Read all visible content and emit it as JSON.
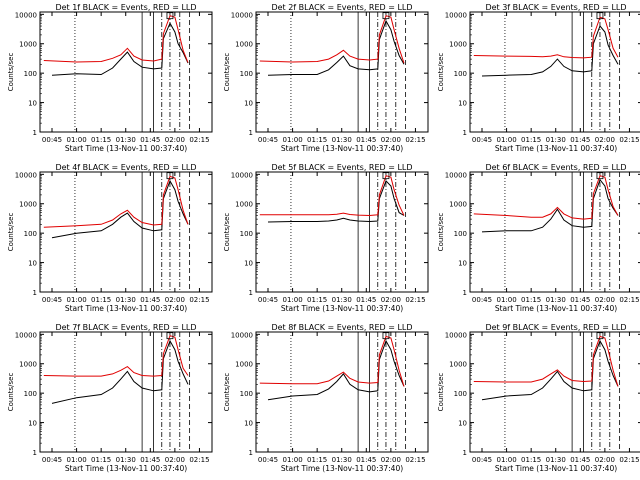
{
  "colors": {
    "events": "#000000",
    "lld": "#e00000",
    "axis": "#000000"
  },
  "chart_data": [
    {
      "type": "line",
      "title": "Det 1f BLACK = Events, RED = LLD",
      "xlabel": "Start Time (13-Nov-11 00:37:40)",
      "ylabel": "Counts/sec",
      "x_tick_labels": [
        "00:45",
        "01:00",
        "01:15",
        "01:30",
        "01:45",
        "02:00",
        "02:15"
      ],
      "y_tick_labels": [
        "1",
        "10",
        "100",
        "1000",
        "10000"
      ],
      "ylim": [
        1,
        12000
      ],
      "y_scale": "log",
      "series": [
        {
          "name": "Events",
          "x": [
            "00:45",
            "01:00",
            "01:15",
            "01:22",
            "01:27",
            "01:31",
            "01:35",
            "01:40",
            "01:47",
            "01:52",
            "01:53",
            "01:57",
            "02:00",
            "02:02",
            "02:05",
            "02:08"
          ],
          "y": [
            85,
            95,
            90,
            150,
            300,
            520,
            250,
            160,
            140,
            150,
            1500,
            5000,
            2500,
            1000,
            500,
            220
          ]
        },
        {
          "name": "LLD",
          "x": [
            "00:40",
            "01:00",
            "01:15",
            "01:22",
            "01:27",
            "01:31",
            "01:35",
            "01:40",
            "01:47",
            "01:52",
            "01:53",
            "01:57",
            "02:00",
            "02:02",
            "02:05",
            "02:08"
          ],
          "y": [
            270,
            240,
            250,
            320,
            420,
            700,
            380,
            280,
            260,
            300,
            2200,
            9000,
            8000,
            3000,
            600,
            230
          ]
        }
      ]
    },
    {
      "type": "line",
      "title": "Det 2f BLACK = Events, RED = LLD",
      "xlabel": "Start Time (13-Nov-11 00:37:40)",
      "ylabel": "Counts/sec",
      "x_tick_labels": [
        "00:45",
        "01:00",
        "01:15",
        "01:30",
        "01:45",
        "02:00",
        "02:15"
      ],
      "y_tick_labels": [
        "1",
        "10",
        "100",
        "1000",
        "10000"
      ],
      "ylim": [
        1,
        12000
      ],
      "y_scale": "log",
      "series": [
        {
          "name": "Events",
          "x": [
            "00:45",
            "01:00",
            "01:15",
            "01:22",
            "01:27",
            "01:31",
            "01:35",
            "01:40",
            "01:47",
            "01:52",
            "01:53",
            "01:57",
            "02:00",
            "02:02",
            "02:05",
            "02:08"
          ],
          "y": [
            85,
            90,
            90,
            130,
            230,
            380,
            180,
            140,
            130,
            140,
            1400,
            6000,
            3000,
            1200,
            400,
            200
          ]
        },
        {
          "name": "LLD",
          "x": [
            "00:40",
            "01:00",
            "01:15",
            "01:22",
            "01:27",
            "01:31",
            "01:35",
            "01:40",
            "01:47",
            "01:52",
            "01:53",
            "01:57",
            "02:00",
            "02:02",
            "02:05",
            "02:08"
          ],
          "y": [
            260,
            240,
            250,
            300,
            420,
            600,
            380,
            300,
            280,
            300,
            2000,
            9000,
            8000,
            3000,
            700,
            220
          ]
        }
      ]
    },
    {
      "type": "line",
      "title": "Det 3f BLACK = Events, RED = LLD",
      "xlabel": "Start Time (13-Nov-11 00:37:40)",
      "ylabel": "Counts/sec",
      "x_tick_labels": [
        "00:45",
        "01:00",
        "01:15",
        "01:30",
        "01:45",
        "02:00",
        "02:15"
      ],
      "y_tick_labels": [
        "1",
        "10",
        "100",
        "1000",
        "10000"
      ],
      "ylim": [
        1,
        12000
      ],
      "y_scale": "log",
      "series": [
        {
          "name": "Events",
          "x": [
            "00:45",
            "01:00",
            "01:15",
            "01:22",
            "01:27",
            "01:31",
            "01:35",
            "01:40",
            "01:47",
            "01:52",
            "01:53",
            "01:57",
            "02:00",
            "02:02",
            "02:05",
            "02:08"
          ],
          "y": [
            80,
            85,
            90,
            110,
            170,
            300,
            170,
            120,
            110,
            120,
            1000,
            4000,
            2500,
            900,
            400,
            200
          ]
        },
        {
          "name": "LLD",
          "x": [
            "00:40",
            "01:00",
            "01:15",
            "01:22",
            "01:27",
            "01:31",
            "01:35",
            "01:40",
            "01:47",
            "01:52",
            "01:53",
            "01:57",
            "02:00",
            "02:02",
            "02:05",
            "02:08"
          ],
          "y": [
            400,
            380,
            370,
            360,
            380,
            420,
            360,
            340,
            330,
            350,
            1800,
            8000,
            7000,
            3000,
            700,
            350
          ]
        }
      ]
    },
    {
      "type": "line",
      "title": "Det 4f BLACK = Events, RED = LLD",
      "xlabel": "Start Time (13-Nov-11 00:37:40)",
      "ylabel": "Counts/sec",
      "x_tick_labels": [
        "00:45",
        "01:00",
        "01:15",
        "01:30",
        "01:45",
        "02:00",
        "02:15"
      ],
      "y_tick_labels": [
        "1",
        "10",
        "100",
        "1000",
        "10000"
      ],
      "ylim": [
        1,
        12000
      ],
      "y_scale": "log",
      "series": [
        {
          "name": "Events",
          "x": [
            "00:45",
            "01:00",
            "01:15",
            "01:22",
            "01:27",
            "01:31",
            "01:35",
            "01:40",
            "01:47",
            "01:52",
            "01:53",
            "01:57",
            "02:00",
            "02:02",
            "02:05",
            "02:08"
          ],
          "y": [
            70,
            100,
            120,
            200,
            350,
            480,
            250,
            150,
            120,
            130,
            1500,
            6000,
            3000,
            1200,
            450,
            200
          ]
        },
        {
          "name": "LLD",
          "x": [
            "00:40",
            "01:00",
            "01:15",
            "01:22",
            "01:27",
            "01:31",
            "01:35",
            "01:40",
            "01:47",
            "01:52",
            "01:53",
            "01:57",
            "02:00",
            "02:02",
            "02:05",
            "02:08"
          ],
          "y": [
            160,
            180,
            200,
            280,
            450,
            600,
            350,
            230,
            190,
            200,
            2000,
            8500,
            7500,
            3000,
            600,
            200
          ]
        }
      ]
    },
    {
      "type": "line",
      "title": "Det 5f BLACK = Events, RED = LLD",
      "xlabel": "Start Time (13-Nov-11 00:37:40)",
      "ylabel": "Counts/sec",
      "x_tick_labels": [
        "00:45",
        "01:00",
        "01:15",
        "01:30",
        "01:45",
        "02:00",
        "02:15"
      ],
      "y_tick_labels": [
        "1",
        "10",
        "100",
        "1000",
        "10000"
      ],
      "ylim": [
        1,
        12000
      ],
      "y_scale": "log",
      "series": [
        {
          "name": "Events",
          "x": [
            "00:45",
            "01:00",
            "01:15",
            "01:22",
            "01:27",
            "01:31",
            "01:35",
            "01:40",
            "01:47",
            "01:52",
            "01:53",
            "01:57",
            "02:00",
            "02:02",
            "02:05",
            "02:08"
          ],
          "y": [
            240,
            250,
            250,
            260,
            280,
            320,
            280,
            260,
            250,
            260,
            1500,
            6000,
            4000,
            1500,
            500,
            400
          ]
        },
        {
          "name": "LLD",
          "x": [
            "00:40",
            "01:00",
            "01:15",
            "01:22",
            "01:27",
            "01:31",
            "01:35",
            "01:40",
            "01:47",
            "01:52",
            "01:53",
            "01:57",
            "02:00",
            "02:02",
            "02:05",
            "02:08"
          ],
          "y": [
            420,
            420,
            420,
            420,
            440,
            480,
            430,
            410,
            400,
            420,
            2000,
            9000,
            8000,
            3000,
            900,
            400
          ]
        }
      ]
    },
    {
      "type": "line",
      "title": "Det 6f BLACK = Events, RED = LLD",
      "xlabel": "Start Time (13-Nov-11 00:37:40)",
      "ylabel": "Counts/sec",
      "x_tick_labels": [
        "00:45",
        "01:00",
        "01:15",
        "01:30",
        "01:45",
        "02:00",
        "02:15"
      ],
      "y_tick_labels": [
        "1",
        "10",
        "100",
        "1000",
        "10000"
      ],
      "ylim": [
        1,
        12000
      ],
      "y_scale": "log",
      "series": [
        {
          "name": "Events",
          "x": [
            "00:45",
            "01:00",
            "01:15",
            "01:22",
            "01:27",
            "01:31",
            "01:35",
            "01:40",
            "01:47",
            "01:52",
            "01:53",
            "01:57",
            "02:00",
            "02:02",
            "02:05",
            "02:08"
          ],
          "y": [
            110,
            120,
            120,
            160,
            300,
            650,
            280,
            180,
            160,
            170,
            1500,
            6500,
            4000,
            1500,
            700,
            400
          ]
        },
        {
          "name": "LLD",
          "x": [
            "00:40",
            "01:00",
            "01:15",
            "01:22",
            "01:27",
            "01:31",
            "01:35",
            "01:40",
            "01:47",
            "01:52",
            "01:53",
            "01:57",
            "02:00",
            "02:02",
            "02:05",
            "02:08"
          ],
          "y": [
            450,
            400,
            350,
            350,
            450,
            750,
            450,
            330,
            300,
            320,
            2200,
            9000,
            8000,
            3000,
            800,
            400
          ]
        }
      ]
    },
    {
      "type": "line",
      "title": "Det 7f BLACK = Events, RED = LLD",
      "xlabel": "Start Time (13-Nov-11 00:37:40)",
      "ylabel": "Counts/sec",
      "x_tick_labels": [
        "00:45",
        "01:00",
        "01:15",
        "01:30",
        "01:45",
        "02:00",
        "02:15"
      ],
      "y_tick_labels": [
        "1",
        "10",
        "100",
        "1000",
        "10000"
      ],
      "ylim": [
        1,
        12000
      ],
      "y_scale": "log",
      "series": [
        {
          "name": "Events",
          "x": [
            "00:45",
            "01:00",
            "01:15",
            "01:22",
            "01:27",
            "01:31",
            "01:35",
            "01:40",
            "01:47",
            "01:52",
            "01:53",
            "01:57",
            "02:00",
            "02:02",
            "02:05",
            "02:08"
          ],
          "y": [
            45,
            70,
            90,
            150,
            300,
            550,
            250,
            150,
            120,
            130,
            1500,
            6000,
            3000,
            1200,
            450,
            200
          ]
        },
        {
          "name": "LLD",
          "x": [
            "00:40",
            "01:00",
            "01:15",
            "01:22",
            "01:27",
            "01:31",
            "01:35",
            "01:40",
            "01:47",
            "01:52",
            "01:53",
            "01:57",
            "02:00",
            "02:02",
            "02:05",
            "02:08"
          ],
          "y": [
            400,
            380,
            380,
            450,
            600,
            800,
            500,
            400,
            380,
            400,
            2200,
            9000,
            8000,
            3000,
            700,
            400
          ]
        }
      ]
    },
    {
      "type": "line",
      "title": "Det 8f BLACK = Events, RED = LLD",
      "xlabel": "Start Time (13-Nov-11 00:37:40)",
      "ylabel": "Counts/sec",
      "x_tick_labels": [
        "00:45",
        "01:00",
        "01:15",
        "01:30",
        "01:45",
        "02:00",
        "02:15"
      ],
      "y_tick_labels": [
        "1",
        "10",
        "100",
        "1000",
        "10000"
      ],
      "ylim": [
        1,
        12000
      ],
      "y_scale": "log",
      "series": [
        {
          "name": "Events",
          "x": [
            "00:45",
            "01:00",
            "01:15",
            "01:22",
            "01:27",
            "01:31",
            "01:35",
            "01:40",
            "01:47",
            "01:52",
            "01:53",
            "01:57",
            "02:00",
            "02:02",
            "02:05",
            "02:08"
          ],
          "y": [
            60,
            80,
            90,
            140,
            250,
            450,
            200,
            130,
            110,
            120,
            1400,
            6000,
            3000,
            1200,
            400,
            170
          ]
        },
        {
          "name": "LLD",
          "x": [
            "00:40",
            "01:00",
            "01:15",
            "01:22",
            "01:27",
            "01:31",
            "01:35",
            "01:40",
            "01:47",
            "01:52",
            "01:53",
            "01:57",
            "02:00",
            "02:02",
            "02:05",
            "02:08"
          ],
          "y": [
            220,
            210,
            210,
            260,
            380,
            520,
            320,
            240,
            220,
            230,
            2000,
            8500,
            7500,
            3000,
            600,
            170
          ]
        }
      ]
    },
    {
      "type": "line",
      "title": "Det 9f BLACK = Events, RED = LLD",
      "xlabel": "Start Time (13-Nov-11 00:37:40)",
      "ylabel": "Counts/sec",
      "x_tick_labels": [
        "00:45",
        "01:00",
        "01:15",
        "01:30",
        "01:45",
        "02:00",
        "02:15"
      ],
      "y_tick_labels": [
        "1",
        "10",
        "100",
        "1000",
        "10000"
      ],
      "ylim": [
        1,
        12000
      ],
      "y_scale": "log",
      "series": [
        {
          "name": "Events",
          "x": [
            "00:45",
            "01:00",
            "01:15",
            "01:22",
            "01:27",
            "01:31",
            "01:35",
            "01:40",
            "01:47",
            "01:52",
            "01:53",
            "01:57",
            "02:00",
            "02:02",
            "02:05",
            "02:08"
          ],
          "y": [
            60,
            80,
            90,
            150,
            300,
            550,
            250,
            150,
            120,
            130,
            1500,
            6000,
            3000,
            1200,
            400,
            170
          ]
        },
        {
          "name": "LLD",
          "x": [
            "00:40",
            "01:00",
            "01:15",
            "01:22",
            "01:27",
            "01:31",
            "01:35",
            "01:40",
            "01:47",
            "01:52",
            "01:53",
            "01:57",
            "02:00",
            "02:02",
            "02:05",
            "02:08"
          ],
          "y": [
            250,
            240,
            240,
            300,
            450,
            620,
            380,
            270,
            250,
            260,
            2000,
            8500,
            7500,
            3000,
            600,
            170
          ]
        }
      ]
    }
  ]
}
